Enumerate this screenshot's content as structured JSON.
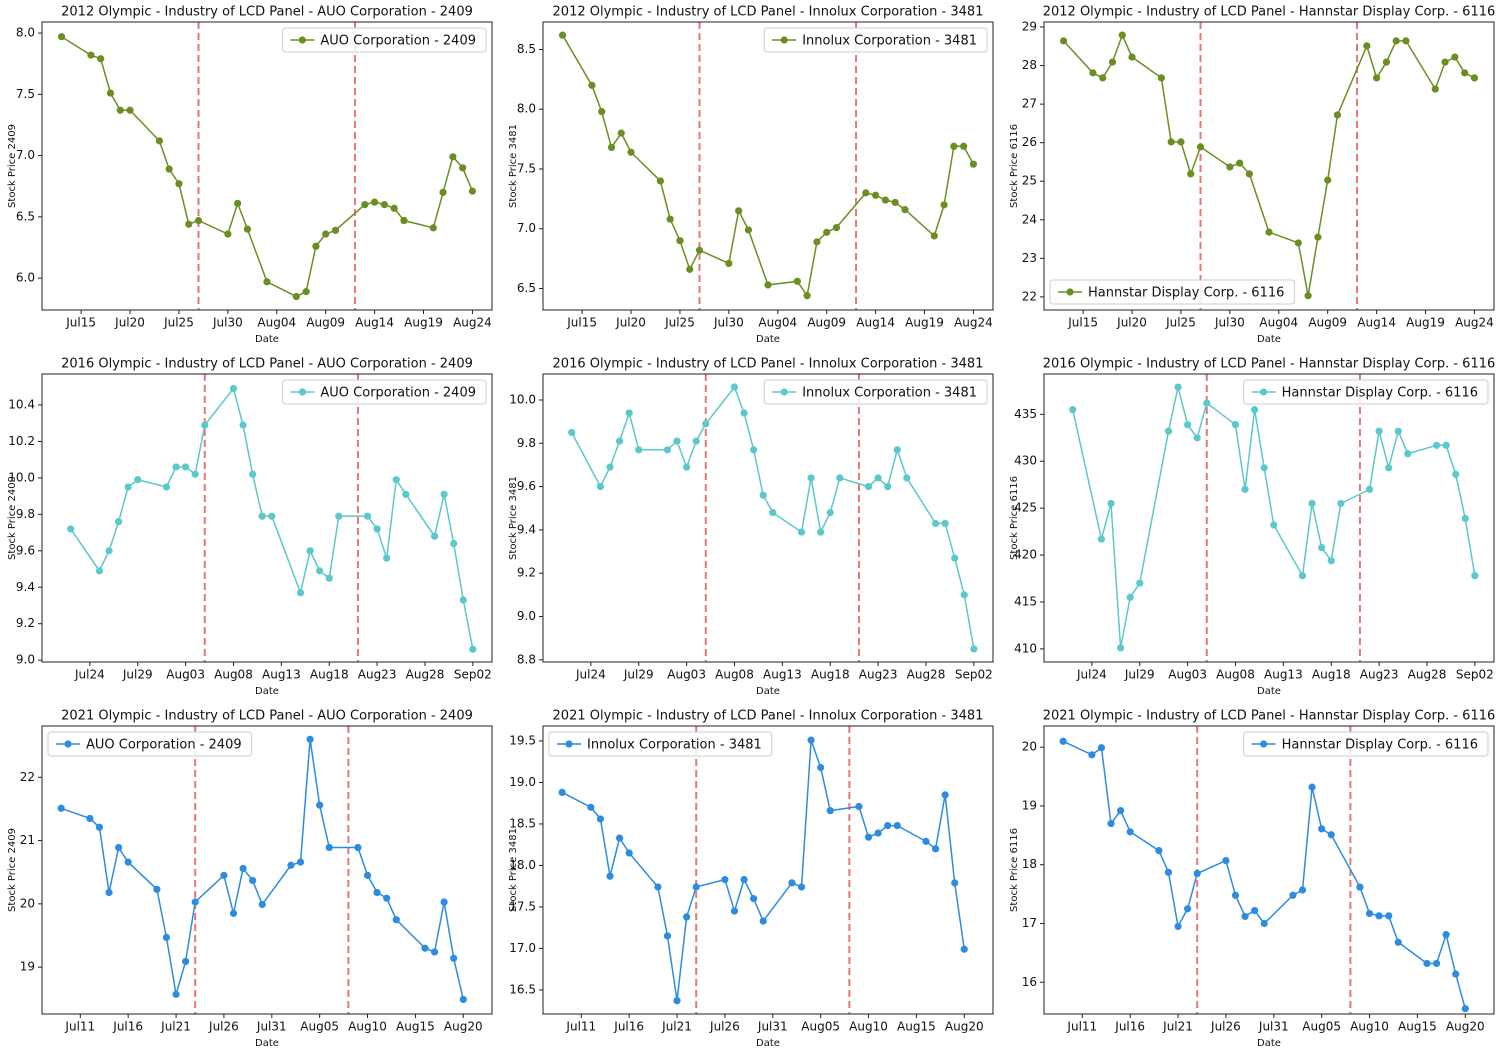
{
  "chart_data": [
    {
      "type": "line",
      "title": "2012 Olympic - Industry of LCD Panel - AUO Corporation - 2409",
      "x_label": "Date",
      "y_label": "Stock Price 2409",
      "x": [
        "Jul13",
        "Jul16",
        "Jul17",
        "Jul18",
        "Jul19",
        "Jul20",
        "Jul23",
        "Jul24",
        "Jul25",
        "Jul26",
        "Jul27",
        "Jul30",
        "Jul31",
        "Aug01",
        "Aug03",
        "Aug06",
        "Aug07",
        "Aug08",
        "Aug09",
        "Aug10",
        "Aug13",
        "Aug14",
        "Aug15",
        "Aug16",
        "Aug17",
        "Aug20",
        "Aug21",
        "Aug22",
        "Aug23",
        "Aug24"
      ],
      "series": [
        {
          "name": "AUO Corporation - 2409",
          "color": "#6b8e23",
          "values": [
            7.97,
            7.82,
            7.79,
            7.51,
            7.37,
            7.37,
            7.12,
            6.89,
            6.77,
            6.44,
            6.47,
            6.36,
            6.61,
            6.4,
            5.97,
            5.85,
            5.89,
            6.26,
            6.36,
            6.39,
            6.6,
            6.62,
            6.6,
            6.57,
            6.47,
            6.41,
            6.7,
            6.99,
            6.9,
            6.71
          ]
        }
      ],
      "xlim": [
        "Jul11",
        "Aug26"
      ],
      "xticks": [
        "Jul15",
        "Jul20",
        "Jul25",
        "Jul30",
        "Aug04",
        "Aug09",
        "Aug14",
        "Aug19",
        "Aug24"
      ],
      "ylim": [
        5.74,
        8.09
      ],
      "yticks": [
        {
          "value": 6,
          "label": "6.0"
        },
        6.5,
        {
          "value": 7,
          "label": "7.0"
        },
        7.5,
        {
          "value": 8,
          "label": "8.0"
        }
      ],
      "vlines": {
        "x": [
          "Jul27",
          "Aug12"
        ],
        "color": "#e87676"
      },
      "legend": "upper right"
    },
    {
      "type": "line",
      "title": "2012 Olympic - Industry of LCD Panel - Innolux Corporation - 3481",
      "x_label": "Date",
      "y_label": "Stock Price 3481",
      "x": [
        "Jul13",
        "Jul16",
        "Jul17",
        "Jul18",
        "Jul19",
        "Jul20",
        "Jul23",
        "Jul24",
        "Jul25",
        "Jul26",
        "Jul27",
        "Jul30",
        "Jul31",
        "Aug01",
        "Aug03",
        "Aug06",
        "Aug07",
        "Aug08",
        "Aug09",
        "Aug10",
        "Aug13",
        "Aug14",
        "Aug15",
        "Aug16",
        "Aug17",
        "Aug20",
        "Aug21",
        "Aug22",
        "Aug23",
        "Aug24"
      ],
      "series": [
        {
          "name": "Innolux Corporation - 3481",
          "color": "#6b8e23",
          "values": [
            8.62,
            8.2,
            7.98,
            7.68,
            7.8,
            7.64,
            7.4,
            7.08,
            6.9,
            6.66,
            6.82,
            6.71,
            7.15,
            6.99,
            6.53,
            6.56,
            6.44,
            6.89,
            6.97,
            7.01,
            7.3,
            7.28,
            7.24,
            7.22,
            7.16,
            6.94,
            7.2,
            7.69,
            7.69,
            7.54
          ]
        }
      ],
      "xlim": [
        "Jul11",
        "Aug26"
      ],
      "xticks": [
        "Jul15",
        "Jul20",
        "Jul25",
        "Jul30",
        "Aug04",
        "Aug09",
        "Aug14",
        "Aug19",
        "Aug24"
      ],
      "ylim": [
        6.32,
        8.73
      ],
      "yticks": [
        6.5,
        {
          "value": 7,
          "label": "7.0"
        },
        7.5,
        {
          "value": 8,
          "label": "8.0"
        },
        8.5
      ],
      "vlines": {
        "x": [
          "Jul27",
          "Aug12"
        ],
        "color": "#e87676"
      },
      "legend": "upper right"
    },
    {
      "type": "line",
      "title": "2012 Olympic - Industry of LCD Panel - Hannstar Display Corp. - 6116",
      "x_label": "Date",
      "y_label": "Stock Price 6116",
      "x": [
        "Jul13",
        "Jul16",
        "Jul17",
        "Jul18",
        "Jul19",
        "Jul20",
        "Jul23",
        "Jul24",
        "Jul25",
        "Jul26",
        "Jul27",
        "Jul30",
        "Jul31",
        "Aug01",
        "Aug03",
        "Aug06",
        "Aug07",
        "Aug08",
        "Aug09",
        "Aug10",
        "Aug13",
        "Aug14",
        "Aug15",
        "Aug16",
        "Aug17",
        "Aug20",
        "Aug21",
        "Aug22",
        "Aug23",
        "Aug24"
      ],
      "series": [
        {
          "name": "Hannstar Display Corp. - 6116",
          "color": "#6b8e23",
          "values": [
            28.64,
            27.81,
            27.68,
            28.09,
            28.79,
            28.22,
            27.68,
            26.02,
            26.02,
            25.19,
            25.89,
            25.37,
            25.47,
            25.19,
            23.68,
            23.4,
            22.03,
            23.55,
            25.03,
            26.72,
            28.51,
            27.68,
            28.09,
            28.64,
            28.64,
            27.39,
            28.09,
            28.22,
            27.81,
            27.68
          ]
        }
      ],
      "xlim": [
        "Jul11",
        "Aug26"
      ],
      "xticks": [
        "Jul15",
        "Jul20",
        "Jul25",
        "Jul30",
        "Aug04",
        "Aug09",
        "Aug14",
        "Aug19",
        "Aug24"
      ],
      "ylim": [
        21.66,
        29.13
      ],
      "yticks": [
        22,
        23,
        24,
        25,
        26,
        27,
        28,
        29
      ],
      "vlines": {
        "x": [
          "Jul27",
          "Aug12"
        ],
        "color": "#e87676"
      },
      "legend": "lower left"
    },
    {
      "type": "line",
      "title": "2016 Olympic - Industry of LCD Panel - AUO Corporation - 2409",
      "x_label": "Date",
      "y_label": "Stock Price 2409",
      "x": [
        "Jul22",
        "Jul25",
        "Jul26",
        "Jul27",
        "Jul28",
        "Jul29",
        "Aug01",
        "Aug02",
        "Aug03",
        "Aug04",
        "Aug05",
        "Aug08",
        "Aug09",
        "Aug10",
        "Aug11",
        "Aug12",
        "Aug15",
        "Aug16",
        "Aug17",
        "Aug18",
        "Aug19",
        "Aug22",
        "Aug23",
        "Aug24",
        "Aug25",
        "Aug26",
        "Aug29",
        "Aug30",
        "Aug31",
        "Sep01",
        "Sep02"
      ],
      "series": [
        {
          "name": "AUO Corporation - 2409",
          "color": "#5bc8cc",
          "values": [
            9.72,
            9.49,
            9.6,
            9.76,
            9.95,
            9.99,
            9.95,
            10.06,
            10.06,
            10.02,
            10.29,
            10.49,
            10.29,
            10.02,
            9.79,
            9.79,
            9.37,
            9.6,
            9.49,
            9.45,
            9.79,
            9.79,
            9.72,
            9.56,
            9.99,
            9.91,
            9.68,
            9.91,
            9.64,
            9.33,
            9.06
          ]
        }
      ],
      "xlim": [
        "Jul19",
        "Sep04"
      ],
      "xticks": [
        "Jul24",
        "Jul29",
        "Aug03",
        "Aug08",
        "Aug13",
        "Aug18",
        "Aug23",
        "Aug28",
        "Sep02"
      ],
      "ylim": [
        8.99,
        10.57
      ],
      "yticks": [
        {
          "value": 9,
          "label": "9.0"
        },
        9.2,
        9.4,
        9.6,
        9.8,
        {
          "value": 10,
          "label": "10.0"
        },
        10.2,
        10.4
      ],
      "vlines": {
        "x": [
          "Aug05",
          "Aug21"
        ],
        "color": "#e87676"
      },
      "legend": "upper right"
    },
    {
      "type": "line",
      "title": "2016 Olympic - Industry of LCD Panel - Innolux Corporation - 3481",
      "x_label": "Date",
      "y_label": "Stock Price 3481",
      "x": [
        "Jul22",
        "Jul25",
        "Jul26",
        "Jul27",
        "Jul28",
        "Jul29",
        "Aug01",
        "Aug02",
        "Aug03",
        "Aug04",
        "Aug05",
        "Aug08",
        "Aug09",
        "Aug10",
        "Aug11",
        "Aug12",
        "Aug15",
        "Aug16",
        "Aug17",
        "Aug18",
        "Aug19",
        "Aug22",
        "Aug23",
        "Aug24",
        "Aug25",
        "Aug26",
        "Aug29",
        "Aug30",
        "Aug31",
        "Sep01",
        "Sep02"
      ],
      "series": [
        {
          "name": "Innolux Corporation - 3481",
          "color": "#5bc8cc",
          "values": [
            9.85,
            9.6,
            9.69,
            9.81,
            9.94,
            9.77,
            9.77,
            9.81,
            9.69,
            9.81,
            9.89,
            10.06,
            9.94,
            9.77,
            9.56,
            9.48,
            9.39,
            9.64,
            9.39,
            9.48,
            9.64,
            9.6,
            9.64,
            9.6,
            9.77,
            9.64,
            9.43,
            9.43,
            9.27,
            9.1,
            8.85
          ]
        }
      ],
      "xlim": [
        "Jul19",
        "Sep04"
      ],
      "xticks": [
        "Jul24",
        "Jul29",
        "Aug03",
        "Aug08",
        "Aug13",
        "Aug18",
        "Aug23",
        "Aug28",
        "Sep02"
      ],
      "ylim": [
        8.79,
        10.12
      ],
      "yticks": [
        8.8,
        {
          "value": 9,
          "label": "9.0"
        },
        9.2,
        9.4,
        9.6,
        9.8,
        {
          "value": 10,
          "label": "10.0"
        }
      ],
      "vlines": {
        "x": [
          "Aug05",
          "Aug21"
        ],
        "color": "#e87676"
      },
      "legend": "upper right"
    },
    {
      "type": "line",
      "title": "2016 Olympic - Industry of LCD Panel - Hannstar Display Corp. - 6116",
      "x_label": "Date",
      "y_label": "Stock Price 6116",
      "x": [
        "Jul22",
        "Jul25",
        "Jul26",
        "Jul27",
        "Jul28",
        "Jul29",
        "Aug01",
        "Aug02",
        "Aug03",
        "Aug04",
        "Aug05",
        "Aug08",
        "Aug09",
        "Aug10",
        "Aug11",
        "Aug12",
        "Aug15",
        "Aug16",
        "Aug17",
        "Aug18",
        "Aug19",
        "Aug22",
        "Aug23",
        "Aug24",
        "Aug25",
        "Aug26",
        "Aug29",
        "Aug30",
        "Aug31",
        "Sep01",
        "Sep02"
      ],
      "series": [
        {
          "name": "Hannstar Display Corp. - 6116",
          "color": "#5bc8cc",
          "values": [
            435.5,
            421.7,
            425.5,
            410.1,
            415.5,
            417.0,
            433.2,
            437.9,
            433.9,
            432.5,
            436.2,
            433.9,
            427.0,
            435.5,
            429.3,
            423.2,
            417.8,
            425.5,
            420.8,
            419.4,
            425.5,
            427.0,
            433.2,
            429.3,
            433.2,
            430.8,
            431.7,
            431.7,
            428.6,
            423.9,
            417.8
          ]
        }
      ],
      "xlim": [
        "Jul19",
        "Sep04"
      ],
      "xticks": [
        "Jul24",
        "Jul29",
        "Aug03",
        "Aug08",
        "Aug13",
        "Aug18",
        "Aug23",
        "Aug28",
        "Sep02"
      ],
      "ylim": [
        408.6,
        439.3
      ],
      "yticks": [
        410,
        415,
        420,
        425,
        430,
        435
      ],
      "vlines": {
        "x": [
          "Aug05",
          "Aug21"
        ],
        "color": "#e87676"
      },
      "legend": "upper right"
    },
    {
      "type": "line",
      "title": "2021 Olympic - Industry of LCD Panel - AUO Corporation - 2409",
      "x_label": "Date",
      "y_label": "Stock Price 2409",
      "x": [
        "Jul09",
        "Jul12",
        "Jul13",
        "Jul14",
        "Jul15",
        "Jul16",
        "Jul19",
        "Jul20",
        "Jul21",
        "Jul22",
        "Jul23",
        "Jul26",
        "Jul27",
        "Jul28",
        "Jul29",
        "Jul30",
        "Aug02",
        "Aug03",
        "Aug04",
        "Aug05",
        "Aug06",
        "Aug09",
        "Aug10",
        "Aug11",
        "Aug12",
        "Aug13",
        "Aug16",
        "Aug17",
        "Aug18",
        "Aug19",
        "Aug20"
      ],
      "series": [
        {
          "name": "AUO Corporation - 2409",
          "color": "#2d8ce0",
          "values": [
            21.51,
            21.35,
            21.21,
            20.18,
            20.89,
            20.66,
            20.23,
            19.47,
            18.57,
            19.09,
            20.03,
            20.45,
            19.85,
            20.56,
            20.37,
            19.99,
            20.61,
            20.66,
            22.6,
            21.56,
            20.89,
            20.89,
            20.45,
            20.18,
            20.09,
            19.75,
            19.3,
            19.24,
            20.03,
            19.14,
            18.49
          ]
        }
      ],
      "xlim": [
        "Jul07",
        "Aug23"
      ],
      "xticks": [
        "Jul11",
        "Jul16",
        "Jul21",
        "Jul26",
        "Jul31",
        "Aug05",
        "Aug10",
        "Aug15",
        "Aug20"
      ],
      "ylim": [
        18.26,
        22.81
      ],
      "yticks": [
        19,
        20,
        21,
        22
      ],
      "vlines": {
        "x": [
          "Jul23",
          "Aug08"
        ],
        "color": "#e87676"
      },
      "legend": "upper left"
    },
    {
      "type": "line",
      "title": "2021 Olympic - Industry of LCD Panel - Innolux Corporation - 3481",
      "x_label": "Date",
      "y_label": "Stock Price 3481",
      "x": [
        "Jul09",
        "Jul12",
        "Jul13",
        "Jul14",
        "Jul15",
        "Jul16",
        "Jul19",
        "Jul20",
        "Jul21",
        "Jul22",
        "Jul23",
        "Jul26",
        "Jul27",
        "Jul28",
        "Jul29",
        "Jul30",
        "Aug02",
        "Aug03",
        "Aug04",
        "Aug05",
        "Aug06",
        "Aug09",
        "Aug10",
        "Aug11",
        "Aug12",
        "Aug13",
        "Aug16",
        "Aug17",
        "Aug18",
        "Aug19",
        "Aug20"
      ],
      "series": [
        {
          "name": "Innolux Corporation - 3481",
          "color": "#2d8ce0",
          "values": [
            18.88,
            18.7,
            18.56,
            17.87,
            18.33,
            18.15,
            17.74,
            17.15,
            16.37,
            17.38,
            17.74,
            17.83,
            17.45,
            17.83,
            17.6,
            17.33,
            17.79,
            17.74,
            19.51,
            19.18,
            18.66,
            18.71,
            18.34,
            18.39,
            18.48,
            18.48,
            18.29,
            18.2,
            18.85,
            17.79,
            16.99
          ]
        }
      ],
      "xlim": [
        "Jul07",
        "Aug23"
      ],
      "xticks": [
        "Jul11",
        "Jul16",
        "Jul21",
        "Jul26",
        "Jul31",
        "Aug05",
        "Aug10",
        "Aug15",
        "Aug20"
      ],
      "ylim": [
        16.21,
        19.68
      ],
      "yticks": [
        16.5,
        {
          "value": 17,
          "label": "17.0"
        },
        17.5,
        {
          "value": 18,
          "label": "18.0"
        },
        18.5,
        {
          "value": 19,
          "label": "19.0"
        },
        19.5
      ],
      "vlines": {
        "x": [
          "Jul23",
          "Aug08"
        ],
        "color": "#e87676"
      },
      "legend": "upper left"
    },
    {
      "type": "line",
      "title": "2021 Olympic - Industry of LCD Panel - Hannstar Display Corp. - 6116",
      "x_label": "Date",
      "y_label": "Stock Price 6116",
      "x": [
        "Jul09",
        "Jul12",
        "Jul13",
        "Jul14",
        "Jul15",
        "Jul16",
        "Jul19",
        "Jul20",
        "Jul21",
        "Jul22",
        "Jul23",
        "Jul26",
        "Jul27",
        "Jul28",
        "Jul29",
        "Jul30",
        "Aug02",
        "Aug03",
        "Aug04",
        "Aug05",
        "Aug06",
        "Aug09",
        "Aug10",
        "Aug11",
        "Aug12",
        "Aug13",
        "Aug16",
        "Aug17",
        "Aug18",
        "Aug19",
        "Aug20"
      ],
      "series": [
        {
          "name": "Hannstar Display Corp. - 6116",
          "color": "#2d8ce0",
          "values": [
            20.1,
            19.87,
            19.99,
            18.7,
            18.92,
            18.56,
            18.24,
            17.87,
            16.95,
            17.25,
            17.85,
            18.07,
            17.48,
            17.12,
            17.22,
            17.0,
            17.48,
            17.57,
            19.32,
            18.61,
            18.51,
            17.62,
            17.17,
            17.13,
            17.13,
            16.68,
            16.32,
            16.32,
            16.81,
            16.14,
            15.55
          ]
        }
      ],
      "xlim": [
        "Jul07",
        "Aug23"
      ],
      "xticks": [
        "Jul11",
        "Jul16",
        "Jul21",
        "Jul26",
        "Jul31",
        "Aug05",
        "Aug10",
        "Aug15",
        "Aug20"
      ],
      "ylim": [
        15.46,
        20.36
      ],
      "yticks": [
        16,
        17,
        18,
        19,
        20
      ],
      "vlines": {
        "x": [
          "Jul23",
          "Aug08"
        ],
        "color": "#e87676"
      },
      "legend": "upper right"
    }
  ]
}
